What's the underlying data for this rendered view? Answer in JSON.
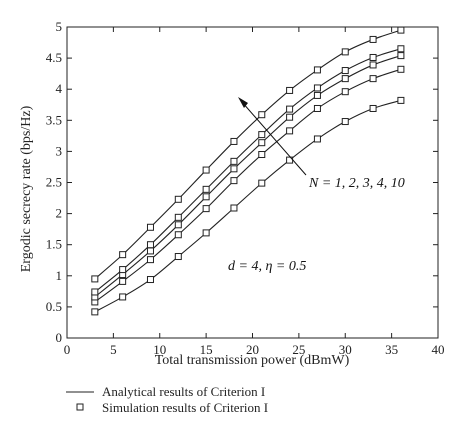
{
  "chart_data": {
    "type": "line",
    "title": "",
    "xlabel": "Total transmission power (dBmW)",
    "ylabel": "Ergodic secrecy rate (bps/Hz)",
    "xlim": [
      0,
      40
    ],
    "ylim": [
      0,
      5
    ],
    "xticks": [
      0,
      5,
      10,
      15,
      20,
      25,
      30,
      35,
      40
    ],
    "yticks": [
      0,
      0.5,
      1,
      1.5,
      2,
      2.5,
      3,
      3.5,
      4,
      4.5,
      5
    ],
    "xtick_labels": [
      "0",
      "5",
      "10",
      "15",
      "20",
      "25",
      "30",
      "35",
      "40"
    ],
    "ytick_labels": [
      "0",
      "0.5",
      "1",
      "1.5",
      "2",
      "2.5",
      "3",
      "3.5",
      "4",
      "4.5",
      "5"
    ],
    "grid": false,
    "legend_position": "bottom",
    "x": [
      3,
      6,
      9,
      12,
      15,
      18,
      21,
      24,
      27,
      30,
      33,
      36
    ],
    "series": [
      {
        "values": [
          0.42,
          0.66,
          0.94,
          1.31,
          1.69,
          2.09,
          2.49,
          2.86,
          3.2,
          3.48,
          3.69,
          3.82
        ]
      },
      {
        "values": [
          0.58,
          0.91,
          1.26,
          1.66,
          2.08,
          2.53,
          2.95,
          3.33,
          3.69,
          3.96,
          4.17,
          4.32
        ]
      },
      {
        "values": [
          0.66,
          1.02,
          1.4,
          1.82,
          2.27,
          2.72,
          3.14,
          3.55,
          3.9,
          4.17,
          4.39,
          4.54
        ]
      },
      {
        "values": [
          0.74,
          1.1,
          1.5,
          1.94,
          2.39,
          2.84,
          3.27,
          3.68,
          4.02,
          4.3,
          4.51,
          4.65
        ]
      },
      {
        "values": [
          0.95,
          1.34,
          1.78,
          2.23,
          2.7,
          3.16,
          3.59,
          3.98,
          4.31,
          4.6,
          4.8,
          4.95
        ]
      }
    ],
    "annotations": [
      {
        "text": "N = 1, 2, 3, 4, 10"
      },
      {
        "text": "d = 4, η = 0.5"
      }
    ],
    "legend": [
      {
        "label": "Analytical results of Criterion I",
        "marker": "line"
      },
      {
        "label": "Simulation results of Criterion I",
        "marker": "square"
      }
    ],
    "line_color": "#222222"
  }
}
